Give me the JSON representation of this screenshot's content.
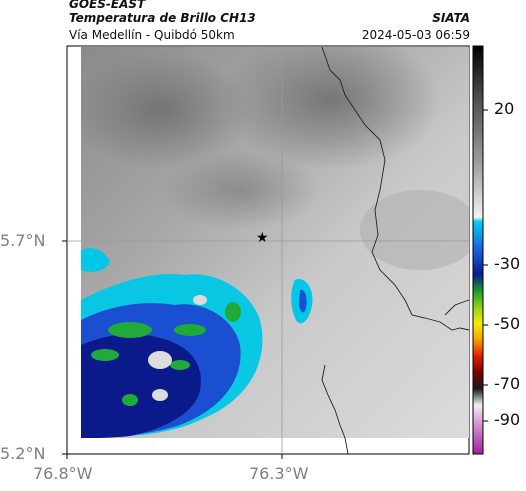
{
  "header": {
    "satellite": "GOES-EAST",
    "product": "Temperatura de Brillo CH13",
    "region": "Vía Medellín - Quibdó 50km",
    "agency": "SIATA",
    "timestamp": "2024-05-03 06:59"
  },
  "axes": {
    "lat_ticks": [
      "5.7°N",
      "5.2°N"
    ],
    "lon_ticks": [
      "76.8°W",
      "76.3°W"
    ]
  },
  "colorbar": {
    "labels": [
      "20",
      "-30",
      "-50",
      "-70",
      "-90"
    ]
  },
  "marker": {
    "symbol": "★",
    "description": "station-star"
  },
  "colors": {
    "warm_gray_light": "#d9d9d9",
    "warm_gray_dark": "#7a7a7a",
    "cyan": "#00c8e6",
    "blue": "#1a4fd1",
    "navy": "#0a1a8a",
    "green": "#1faa3a"
  }
}
